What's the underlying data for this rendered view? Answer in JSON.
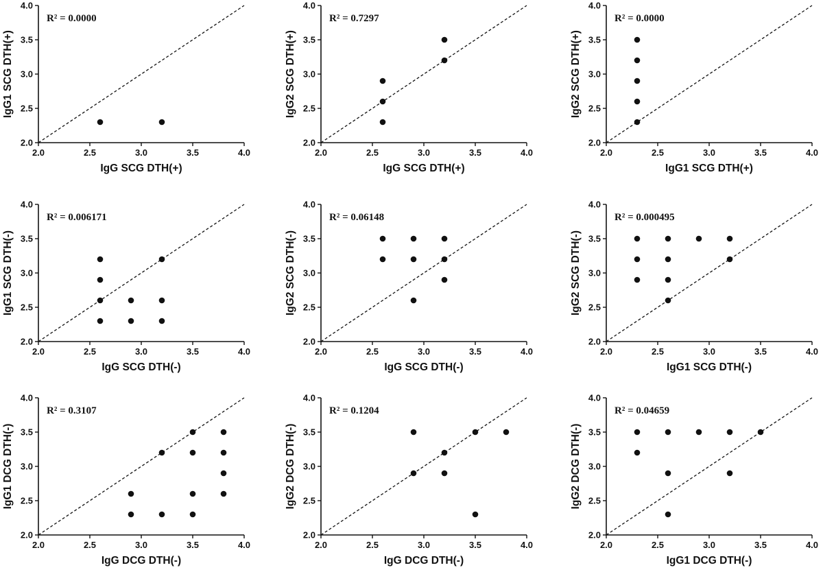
{
  "chart_data": [
    {
      "type": "scatter",
      "xlabel": "IgG SCG DTH(+)",
      "ylabel": "IgG1 SCG DTH(+)",
      "annotation": "R² = 0.0000",
      "xlim": [
        2.0,
        4.0
      ],
      "ylim": [
        2.0,
        4.0
      ],
      "xticks": [
        "2.0",
        "2.5",
        "3.0",
        "3.5",
        "4.0"
      ],
      "yticks": [
        "2.0",
        "2.5",
        "3.0",
        "3.5",
        "4.0"
      ],
      "reference_line": "y = x (dashed)",
      "points": [
        [
          2.6,
          2.3
        ],
        [
          3.2,
          2.3
        ]
      ]
    },
    {
      "type": "scatter",
      "xlabel": "IgG SCG DTH(+)",
      "ylabel": "IgG2 SCG DTH(+)",
      "annotation": "R² = 0.7297",
      "xlim": [
        2.0,
        4.0
      ],
      "ylim": [
        2.0,
        4.0
      ],
      "xticks": [
        "2.0",
        "2.5",
        "3.0",
        "3.5",
        "4.0"
      ],
      "yticks": [
        "2.0",
        "2.5",
        "3.0",
        "3.5",
        "4.0"
      ],
      "reference_line": "y = x (dashed)",
      "points": [
        [
          2.6,
          2.3
        ],
        [
          2.6,
          2.6
        ],
        [
          2.6,
          2.9
        ],
        [
          3.2,
          3.2
        ],
        [
          3.2,
          3.5
        ]
      ]
    },
    {
      "type": "scatter",
      "xlabel": "IgG1 SCG DTH(+)",
      "ylabel": "IgG2 SCG DTH(+)",
      "annotation": "R² = 0.0000",
      "xlim": [
        2.0,
        4.0
      ],
      "ylim": [
        2.0,
        4.0
      ],
      "xticks": [
        "2.0",
        "2.5",
        "3.0",
        "3.5",
        "4.0"
      ],
      "yticks": [
        "2.0",
        "2.5",
        "3.0",
        "3.5",
        "4.0"
      ],
      "reference_line": "y = x (dashed)",
      "points": [
        [
          2.3,
          2.3
        ],
        [
          2.3,
          2.6
        ],
        [
          2.3,
          2.9
        ],
        [
          2.3,
          3.2
        ],
        [
          2.3,
          3.5
        ]
      ]
    },
    {
      "type": "scatter",
      "xlabel": "IgG SCG DTH(-)",
      "ylabel": "IgG1 SCG DTH(-)",
      "annotation": "R² = 0.006171",
      "xlim": [
        2.0,
        4.0
      ],
      "ylim": [
        2.0,
        4.0
      ],
      "xticks": [
        "2.0",
        "2.5",
        "3.0",
        "3.5",
        "4.0"
      ],
      "yticks": [
        "2.0",
        "2.5",
        "3.0",
        "3.5",
        "4.0"
      ],
      "reference_line": "y = x (dashed)",
      "points": [
        [
          2.6,
          2.3
        ],
        [
          2.6,
          2.6
        ],
        [
          2.6,
          2.9
        ],
        [
          2.6,
          3.2
        ],
        [
          2.9,
          2.3
        ],
        [
          2.9,
          2.6
        ],
        [
          3.2,
          2.3
        ],
        [
          3.2,
          2.6
        ],
        [
          3.2,
          3.2
        ]
      ]
    },
    {
      "type": "scatter",
      "xlabel": "IgG SCG DTH(-)",
      "ylabel": "IgG2 SCG DTH(-)",
      "annotation": "R² = 0.06148",
      "xlim": [
        2.0,
        4.0
      ],
      "ylim": [
        2.0,
        4.0
      ],
      "xticks": [
        "2.0",
        "2.5",
        "3.0",
        "3.5",
        "4.0"
      ],
      "yticks": [
        "2.0",
        "2.5",
        "3.0",
        "3.5",
        "4.0"
      ],
      "reference_line": "y = x (dashed)",
      "points": [
        [
          2.6,
          3.2
        ],
        [
          2.6,
          3.5
        ],
        [
          2.9,
          2.6
        ],
        [
          2.9,
          3.2
        ],
        [
          2.9,
          3.5
        ],
        [
          3.2,
          2.9
        ],
        [
          3.2,
          3.2
        ],
        [
          3.2,
          3.5
        ]
      ]
    },
    {
      "type": "scatter",
      "xlabel": "IgG1 SCG DTH(-)",
      "ylabel": "IgG2 SCG DTH(-)",
      "annotation": "R² = 0.000495",
      "xlim": [
        2.0,
        4.0
      ],
      "ylim": [
        2.0,
        4.0
      ],
      "xticks": [
        "2.0",
        "2.5",
        "3.0",
        "3.5",
        "4.0"
      ],
      "yticks": [
        "2.0",
        "2.5",
        "3.0",
        "3.5",
        "4.0"
      ],
      "reference_line": "y = x (dashed)",
      "points": [
        [
          2.3,
          2.9
        ],
        [
          2.3,
          3.2
        ],
        [
          2.3,
          3.5
        ],
        [
          2.6,
          2.6
        ],
        [
          2.6,
          2.9
        ],
        [
          2.6,
          3.2
        ],
        [
          2.6,
          3.5
        ],
        [
          2.9,
          3.5
        ],
        [
          3.2,
          3.2
        ],
        [
          3.2,
          3.5
        ]
      ]
    },
    {
      "type": "scatter",
      "xlabel": "IgG DCG DTH(-)",
      "ylabel": "IgG1 DCG DTH(-)",
      "annotation": "R² = 0.3107",
      "xlim": [
        2.0,
        4.0
      ],
      "ylim": [
        2.0,
        4.0
      ],
      "xticks": [
        "2.0",
        "2.5",
        "3.0",
        "3.5",
        "4.0"
      ],
      "yticks": [
        "2.0",
        "2.5",
        "3.0",
        "3.5",
        "4.0"
      ],
      "reference_line": "y = x (dashed)",
      "points": [
        [
          2.9,
          2.3
        ],
        [
          2.9,
          2.6
        ],
        [
          3.2,
          2.3
        ],
        [
          3.2,
          3.2
        ],
        [
          3.5,
          2.3
        ],
        [
          3.5,
          2.6
        ],
        [
          3.5,
          3.2
        ],
        [
          3.5,
          3.5
        ],
        [
          3.8,
          2.6
        ],
        [
          3.8,
          2.9
        ],
        [
          3.8,
          3.2
        ],
        [
          3.8,
          3.5
        ]
      ]
    },
    {
      "type": "scatter",
      "xlabel": "IgG DCG DTH(-)",
      "ylabel": "IgG2 DCG DTH(-)",
      "annotation": "R² = 0.1204",
      "xlim": [
        2.0,
        4.0
      ],
      "ylim": [
        2.0,
        4.0
      ],
      "xticks": [
        "2.0",
        "2.5",
        "3.0",
        "3.5",
        "4.0"
      ],
      "yticks": [
        "2.0",
        "2.5",
        "3.0",
        "3.5",
        "4.0"
      ],
      "reference_line": "y = x (dashed)",
      "points": [
        [
          2.9,
          2.9
        ],
        [
          2.9,
          3.5
        ],
        [
          3.2,
          2.9
        ],
        [
          3.2,
          3.2
        ],
        [
          3.5,
          2.3
        ],
        [
          3.5,
          3.5
        ],
        [
          3.8,
          3.5
        ]
      ]
    },
    {
      "type": "scatter",
      "xlabel": "IgG1 DCG DTH(-)",
      "ylabel": "IgG2 DCG DTH(-)",
      "annotation": "R² = 0.04659",
      "xlim": [
        2.0,
        4.0
      ],
      "ylim": [
        2.0,
        4.0
      ],
      "xticks": [
        "2.0",
        "2.5",
        "3.0",
        "3.5",
        "4.0"
      ],
      "yticks": [
        "2.0",
        "2.5",
        "3.0",
        "3.5",
        "4.0"
      ],
      "reference_line": "y = x (dashed)",
      "points": [
        [
          2.3,
          3.2
        ],
        [
          2.3,
          3.5
        ],
        [
          2.6,
          2.3
        ],
        [
          2.6,
          2.9
        ],
        [
          2.6,
          3.5
        ],
        [
          2.9,
          3.5
        ],
        [
          3.2,
          2.9
        ],
        [
          3.2,
          3.5
        ],
        [
          3.5,
          3.5
        ]
      ]
    }
  ]
}
